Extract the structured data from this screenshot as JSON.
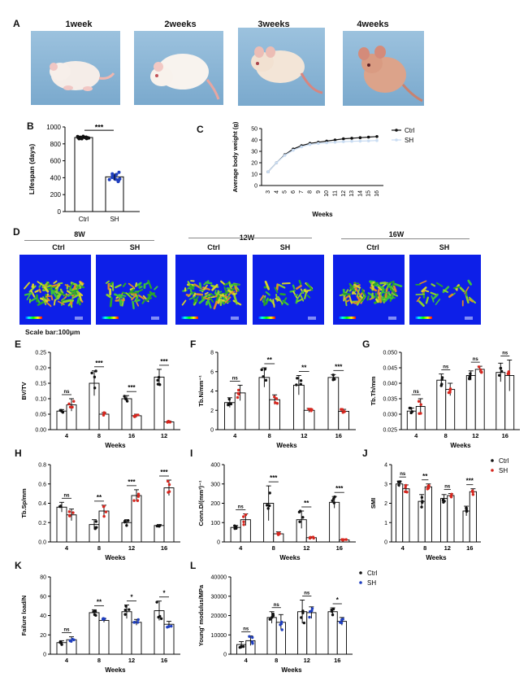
{
  "panels": {
    "A": "A",
    "B": "B",
    "C": "C",
    "D": "D",
    "E": "E",
    "F": "F",
    "G": "G",
    "H": "H",
    "I": "I",
    "J": "J",
    "K": "K",
    "L": "L"
  },
  "photos": [
    "1week",
    "2weeks",
    "3weeks",
    "4weeks"
  ],
  "ct": {
    "groups": [
      "8W",
      "12W",
      "16W"
    ],
    "ctrl": "Ctrl",
    "sh": "SH",
    "scale_bar": "Scale bar:100μm"
  },
  "colors": {
    "ctrl": "#111111",
    "sh_red": "#d7261e",
    "sh_blue": "#1f3fbf",
    "sh_light": "#c9dcf2"
  },
  "chart_data": [
    {
      "id": "B",
      "type": "bar",
      "categories": [
        "Ctrl",
        "SH"
      ],
      "values": [
        875,
        410
      ],
      "ylabel": "Lifespan (days)",
      "ylim": [
        0,
        1000
      ],
      "yticks": [
        "0",
        "200",
        "400",
        "600",
        "800",
        "1000"
      ],
      "significance": "***"
    },
    {
      "id": "C",
      "type": "line",
      "x": [
        "3",
        "4",
        "5",
        "6",
        "7",
        "8",
        "9",
        "10",
        "11",
        "12",
        "13",
        "14",
        "15",
        "16"
      ],
      "series": [
        {
          "name": "Ctrl",
          "values": [
            12,
            20,
            27,
            32,
            35,
            37,
            38,
            39,
            40,
            41,
            41.5,
            42,
            42.5,
            43
          ]
        },
        {
          "name": "SH",
          "values": [
            12,
            20,
            26.5,
            31,
            34,
            36,
            37,
            37.5,
            38,
            38.5,
            38.8,
            39,
            39.2,
            39.5
          ]
        }
      ],
      "xlabel": "Weeks",
      "ylabel": "Average body weight (g)",
      "ylim": [
        0,
        50
      ],
      "yticks": [
        "0",
        "10",
        "20",
        "30",
        "40",
        "50"
      ],
      "legend": "top-right"
    },
    {
      "id": "E",
      "type": "bar",
      "categories": [
        "4",
        "8",
        "16",
        "12"
      ],
      "series": [
        {
          "name": "Ctrl",
          "values": [
            0.06,
            0.15,
            0.1,
            0.17
          ],
          "err": [
            0.005,
            0.04,
            0.01,
            0.025
          ]
        },
        {
          "name": "SH",
          "values": [
            0.08,
            0.05,
            0.045,
            0.025
          ],
          "err": [
            0.02,
            0.005,
            0.005,
            0.003
          ]
        }
      ],
      "xlabel": "Weeks",
      "ylabel": "BV/TV",
      "ylim": [
        0,
        0.25
      ],
      "yticks": [
        "0.00",
        "0.05",
        "0.10",
        "0.15",
        "0.20",
        "0.25"
      ],
      "sig": [
        "ns",
        "***",
        "***",
        "***"
      ]
    },
    {
      "id": "F",
      "type": "bar",
      "categories": [
        "4",
        "8",
        "12",
        "16"
      ],
      "series": [
        {
          "name": "Ctrl",
          "values": [
            2.8,
            5.4,
            4.6,
            5.4
          ],
          "err": [
            0.5,
            1.0,
            1.0,
            0.3
          ]
        },
        {
          "name": "SH",
          "values": [
            3.8,
            3.1,
            2.0,
            1.9
          ],
          "err": [
            0.8,
            0.5,
            0.2,
            0.2
          ]
        }
      ],
      "xlabel": "Weeks",
      "ylabel": "Tb.N/mm⁻¹",
      "ylim": [
        0,
        8
      ],
      "yticks": [
        "0",
        "2",
        "4",
        "6",
        "8"
      ],
      "sig": [
        "ns",
        "**",
        "**",
        "***"
      ]
    },
    {
      "id": "G",
      "type": "bar",
      "categories": [
        "4",
        "8",
        "12",
        "16"
      ],
      "series": [
        {
          "name": "Ctrl",
          "values": [
            0.031,
            0.041,
            0.0425,
            0.0435
          ],
          "err": [
            0.001,
            0.002,
            0.0015,
            0.003
          ]
        },
        {
          "name": "SH",
          "values": [
            0.0325,
            0.038,
            0.0445,
            0.0425
          ],
          "err": [
            0.0025,
            0.002,
            0.001,
            0.005
          ]
        }
      ],
      "xlabel": "Weeks",
      "ylabel": "Tb.Th/mm",
      "ylim": [
        0.025,
        0.05
      ],
      "yticks": [
        "0.025",
        "0.030",
        "0.035",
        "0.040",
        "0.045",
        "0.050"
      ],
      "sig": [
        "ns",
        "ns",
        "ns",
        "ns"
      ]
    },
    {
      "id": "H",
      "type": "bar",
      "categories": [
        "4",
        "8",
        "12",
        "16"
      ],
      "series": [
        {
          "name": "Ctrl",
          "values": [
            0.36,
            0.18,
            0.2,
            0.17
          ],
          "err": [
            0.05,
            0.05,
            0.03,
            0.01
          ]
        },
        {
          "name": "SH",
          "values": [
            0.28,
            0.32,
            0.48,
            0.56
          ],
          "err": [
            0.06,
            0.06,
            0.06,
            0.08
          ]
        }
      ],
      "xlabel": "Weeks",
      "ylabel": "Tb.Sp/mm",
      "ylim": [
        0,
        0.8
      ],
      "yticks": [
        "0.0",
        "0.2",
        "0.4",
        "0.6",
        "0.8"
      ],
      "sig": [
        "ns",
        "**",
        "***",
        "***"
      ]
    },
    {
      "id": "I",
      "type": "bar",
      "categories": [
        "4",
        "8",
        "12",
        "16"
      ],
      "series": [
        {
          "name": "Ctrl",
          "values": [
            75,
            200,
            115,
            205
          ],
          "err": [
            10,
            90,
            45,
            30
          ]
        },
        {
          "name": "SH",
          "values": [
            115,
            42,
            22,
            10
          ],
          "err": [
            30,
            10,
            5,
            3
          ]
        }
      ],
      "xlabel": "Weeks",
      "ylabel": "Conn.D/(mm³)⁻¹",
      "ylim": [
        0,
        400
      ],
      "yticks": [
        "0",
        "100",
        "200",
        "300",
        "400"
      ],
      "sig": [
        "ns",
        "***",
        "**",
        "***"
      ]
    },
    {
      "id": "J",
      "type": "bar",
      "categories": [
        "4",
        "8",
        "12",
        "16"
      ],
      "series": [
        {
          "name": "Ctrl",
          "values": [
            3.0,
            2.1,
            2.25,
            1.6
          ],
          "err": [
            0.15,
            0.35,
            0.2,
            0.25
          ]
        },
        {
          "name": "SH",
          "values": [
            2.75,
            2.85,
            2.4,
            2.6
          ],
          "err": [
            0.2,
            0.15,
            0.1,
            0.15
          ]
        }
      ],
      "xlabel": "Weeks",
      "ylabel": "SMI",
      "ylim": [
        0,
        4
      ],
      "yticks": [
        "0",
        "1",
        "2",
        "3",
        "4"
      ],
      "sig": [
        "ns",
        "**",
        "ns",
        "***"
      ],
      "legend": "top-right"
    },
    {
      "id": "K",
      "type": "bar",
      "categories": [
        "4",
        "8",
        "12",
        "16"
      ],
      "series": [
        {
          "name": "Ctrl",
          "values": [
            12,
            43,
            44,
            45
          ],
          "err": [
            2,
            3,
            7,
            10
          ]
        },
        {
          "name": "SH",
          "values": [
            15,
            35,
            33,
            31
          ],
          "err": [
            3,
            2,
            3,
            3
          ]
        }
      ],
      "xlabel": "Weeks",
      "ylabel": "Failure load/N",
      "ylim": [
        0,
        80
      ],
      "yticks": [
        "0",
        "20",
        "40",
        "60",
        "80"
      ],
      "sig": [
        "ns",
        "**",
        "*",
        "*"
      ]
    },
    {
      "id": "L",
      "type": "bar",
      "categories": [
        "4",
        "8",
        "12",
        "16"
      ],
      "series": [
        {
          "name": "Ctrl",
          "values": [
            5000,
            19000,
            22000,
            22000
          ],
          "err": [
            1500,
            3000,
            6000,
            2000
          ]
        },
        {
          "name": "SH",
          "values": [
            7000,
            16500,
            21500,
            17000
          ],
          "err": [
            2500,
            4000,
            3000,
            2000
          ]
        }
      ],
      "xlabel": "Weeks",
      "ylabel": "Young' modulus/MPa",
      "ylim": [
        0,
        40000
      ],
      "yticks": [
        "0",
        "10000",
        "20000",
        "30000",
        "40000"
      ],
      "sig": [
        "ns",
        "ns",
        "ns",
        "*"
      ],
      "legend": "top-right"
    }
  ]
}
